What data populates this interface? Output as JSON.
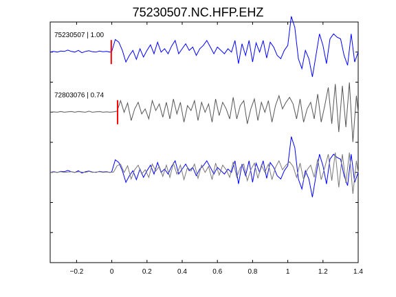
{
  "chart_data": {
    "type": "line",
    "title": "75230507.NC.HFP.EHZ",
    "xlabel": "",
    "ylabel": "",
    "xlim": [
      -0.35,
      1.4
    ],
    "xticks": [
      -0.2,
      0,
      0.2,
      0.4,
      0.6,
      0.8,
      1,
      1.2,
      1.4
    ],
    "xtick_labels": [
      "−0.2",
      "0",
      "0.2",
      "0.4",
      "0.6",
      "0.8",
      "1",
      "1.2",
      "1.4"
    ],
    "ylim": [
      -0.5,
      3.5
    ],
    "grid": false,
    "colors": {
      "master": "#0000ff",
      "correlated": "#555555",
      "correlated_overlay": "#777777",
      "pick": "#ff0000"
    },
    "traces": [
      {
        "label": "75230507 | 1.00",
        "baseline": 3,
        "color_key": "master",
        "pick_x": -0.003
      },
      {
        "label": "72803076 | 0.74",
        "baseline": 2,
        "color_key": "correlated",
        "pick_x": 0.033
      },
      {
        "label": "",
        "baseline": 1,
        "color_key": "overlay",
        "pick_x": null
      }
    ],
    "series": [
      {
        "color_key": "master",
        "x": [
          -0.35,
          -0.33,
          -0.31,
          -0.29,
          -0.27,
          -0.25,
          -0.23,
          -0.21,
          -0.19,
          -0.17,
          -0.15,
          -0.13,
          -0.11,
          -0.09,
          -0.07,
          -0.05,
          -0.03,
          -0.01,
          0.0,
          0.02,
          0.04,
          0.06,
          0.08,
          0.1,
          0.12,
          0.14,
          0.16,
          0.18,
          0.2,
          0.22,
          0.24,
          0.26,
          0.28,
          0.3,
          0.32,
          0.34,
          0.36,
          0.38,
          0.4,
          0.42,
          0.44,
          0.46,
          0.48,
          0.5,
          0.52,
          0.54,
          0.56,
          0.58,
          0.6,
          0.62,
          0.64,
          0.66,
          0.68,
          0.7,
          0.72,
          0.74,
          0.76,
          0.78,
          0.8,
          0.82,
          0.84,
          0.86,
          0.88,
          0.9,
          0.92,
          0.94,
          0.96,
          0.98,
          1.0,
          1.02,
          1.04,
          1.06,
          1.08,
          1.1,
          1.12,
          1.14,
          1.16,
          1.18,
          1.2,
          1.22,
          1.24,
          1.26,
          1.28,
          1.3,
          1.32,
          1.34,
          1.36,
          1.38,
          1.4
        ],
        "y": [
          0,
          0.02,
          0.0,
          0.03,
          0.02,
          0.06,
          0.02,
          0.0,
          0.05,
          -0.02,
          0.02,
          0.04,
          0.01,
          0.0,
          0.03,
          0.01,
          0.02,
          0.0,
          0.02,
          0.38,
          0.3,
          0.05,
          -0.3,
          -0.1,
          0.05,
          -0.22,
          0.1,
          -0.15,
          0.05,
          0.22,
          -0.05,
          0.3,
          0.0,
          0.1,
          -0.05,
          0.18,
          0.35,
          -0.05,
          0.1,
          0.25,
          0.05,
          0.15,
          -0.1,
          0.1,
          0.2,
          0.35,
          0.15,
          -0.05,
          0.15,
          0.05,
          -0.05,
          0.1,
          0.0,
          0.35,
          -0.35,
          0.25,
          -0.1,
          0.35,
          -0.3,
          0.28,
          0.0,
          0.35,
          -0.18,
          0.3,
          0.15,
          -0.1,
          -0.2,
          0.05,
          0.2,
          1.08,
          0.75,
          -0.2,
          -0.5,
          0.05,
          -0.2,
          -0.75,
          -0.1,
          0.55,
          0.2,
          -0.35,
          0.4,
          0.55,
          0.45,
          0.4,
          -0.1,
          -0.4,
          0.55,
          -0.3,
          0.0
        ]
      },
      {
        "color_key": "correlated",
        "x": [
          -0.35,
          -0.33,
          -0.31,
          -0.29,
          -0.27,
          -0.25,
          -0.23,
          -0.21,
          -0.19,
          -0.17,
          -0.15,
          -0.13,
          -0.11,
          -0.09,
          -0.07,
          -0.05,
          -0.03,
          -0.01,
          0.01,
          0.03,
          0.05,
          0.07,
          0.09,
          0.11,
          0.13,
          0.15,
          0.17,
          0.19,
          0.21,
          0.23,
          0.25,
          0.27,
          0.29,
          0.31,
          0.33,
          0.35,
          0.37,
          0.39,
          0.41,
          0.43,
          0.45,
          0.47,
          0.49,
          0.51,
          0.53,
          0.55,
          0.57,
          0.59,
          0.61,
          0.63,
          0.65,
          0.67,
          0.69,
          0.71,
          0.73,
          0.75,
          0.77,
          0.79,
          0.81,
          0.83,
          0.85,
          0.87,
          0.89,
          0.91,
          0.93,
          0.95,
          0.97,
          0.99,
          1.01,
          1.03,
          1.05,
          1.07,
          1.09,
          1.11,
          1.13,
          1.15,
          1.17,
          1.19,
          1.21,
          1.23,
          1.25,
          1.27,
          1.29,
          1.31,
          1.33,
          1.35,
          1.37,
          1.39,
          1.4
        ],
        "y": [
          0,
          0.01,
          0.0,
          0.02,
          0.0,
          0.01,
          0.02,
          0.0,
          0.02,
          0.01,
          0.0,
          0.03,
          0.0,
          0.01,
          0.02,
          0.0,
          0.01,
          0.0,
          0.01,
          0.03,
          0.35,
          0.0,
          0.28,
          -0.25,
          0.1,
          0.3,
          -0.05,
          0.1,
          -0.2,
          0.35,
          0.05,
          0.25,
          -0.15,
          0.3,
          -0.2,
          0.4,
          -0.05,
          0.3,
          -0.3,
          0.2,
          0.05,
          0.35,
          -0.25,
          0.3,
          0.0,
          0.25,
          -0.3,
          0.4,
          -0.1,
          0.3,
          0.1,
          -0.2,
          0.45,
          -0.2,
          0.2,
          0.35,
          -0.35,
          0.1,
          0.4,
          -0.25,
          0.3,
          0.0,
          0.35,
          -0.3,
          0.2,
          0.5,
          0.1,
          0.3,
          0.45,
          0.25,
          -0.2,
          0.4,
          -0.3,
          0.1,
          0.3,
          -0.2,
          0.55,
          -0.3,
          0.2,
          0.75,
          -0.35,
          0.85,
          -0.6,
          0.8,
          -0.45,
          0.9,
          -0.9,
          0.5,
          0.0
        ]
      },
      {
        "color_key": "master",
        "x": [
          -0.35,
          -0.33,
          -0.31,
          -0.29,
          -0.27,
          -0.25,
          -0.23,
          -0.21,
          -0.19,
          -0.17,
          -0.15,
          -0.13,
          -0.11,
          -0.09,
          -0.07,
          -0.05,
          -0.03,
          -0.01,
          0.0,
          0.02,
          0.04,
          0.06,
          0.08,
          0.1,
          0.12,
          0.14,
          0.16,
          0.18,
          0.2,
          0.22,
          0.24,
          0.26,
          0.28,
          0.3,
          0.32,
          0.34,
          0.36,
          0.38,
          0.4,
          0.42,
          0.44,
          0.46,
          0.48,
          0.5,
          0.52,
          0.54,
          0.56,
          0.58,
          0.6,
          0.62,
          0.64,
          0.66,
          0.68,
          0.7,
          0.72,
          0.74,
          0.76,
          0.78,
          0.8,
          0.82,
          0.84,
          0.86,
          0.88,
          0.9,
          0.92,
          0.94,
          0.96,
          0.98,
          1.0,
          1.02,
          1.04,
          1.06,
          1.08,
          1.1,
          1.12,
          1.14,
          1.16,
          1.18,
          1.2,
          1.22,
          1.24,
          1.26,
          1.28,
          1.3,
          1.32,
          1.34,
          1.36,
          1.38,
          1.4
        ],
        "y": [
          0,
          0.02,
          0.0,
          0.03,
          0.02,
          0.06,
          0.02,
          0.0,
          0.05,
          -0.02,
          0.02,
          0.04,
          0.01,
          0.0,
          0.03,
          0.01,
          0.02,
          0.0,
          0.02,
          0.38,
          0.3,
          0.05,
          -0.3,
          -0.1,
          0.05,
          -0.22,
          0.1,
          -0.15,
          0.05,
          0.22,
          -0.05,
          0.3,
          0.0,
          0.1,
          -0.05,
          0.18,
          0.35,
          -0.05,
          0.1,
          0.25,
          0.05,
          0.15,
          -0.1,
          0.1,
          0.2,
          0.35,
          0.15,
          -0.05,
          0.15,
          0.05,
          -0.05,
          0.1,
          0.0,
          0.35,
          -0.35,
          0.25,
          -0.1,
          0.35,
          -0.3,
          0.28,
          0.0,
          0.35,
          -0.18,
          0.3,
          0.15,
          -0.1,
          -0.2,
          0.05,
          0.2,
          1.08,
          0.75,
          -0.2,
          -0.5,
          0.05,
          -0.2,
          -0.75,
          -0.1,
          0.55,
          0.2,
          -0.35,
          0.4,
          0.55,
          0.45,
          0.4,
          -0.1,
          -0.4,
          0.55,
          -0.3,
          0.0
        ]
      },
      {
        "color_key": "correlated_overlay",
        "x": [
          -0.35,
          -0.33,
          -0.31,
          -0.29,
          -0.27,
          -0.25,
          -0.23,
          -0.21,
          -0.19,
          -0.17,
          -0.15,
          -0.13,
          -0.11,
          -0.09,
          -0.07,
          -0.05,
          -0.03,
          -0.01,
          0.01,
          0.03,
          0.05,
          0.07,
          0.09,
          0.11,
          0.13,
          0.15,
          0.17,
          0.19,
          0.21,
          0.23,
          0.25,
          0.27,
          0.29,
          0.31,
          0.33,
          0.35,
          0.37,
          0.39,
          0.41,
          0.43,
          0.45,
          0.47,
          0.49,
          0.51,
          0.53,
          0.55,
          0.57,
          0.59,
          0.61,
          0.63,
          0.65,
          0.67,
          0.69,
          0.71,
          0.73,
          0.75,
          0.77,
          0.79,
          0.81,
          0.83,
          0.85,
          0.87,
          0.89,
          0.91,
          0.93,
          0.95,
          0.97,
          0.99,
          1.01,
          1.03,
          1.05,
          1.07,
          1.09,
          1.11,
          1.13,
          1.15,
          1.17,
          1.19,
          1.21,
          1.23,
          1.25,
          1.27,
          1.29,
          1.31,
          1.33,
          1.35,
          1.37,
          1.39,
          1.4
        ],
        "y": [
          0,
          0.01,
          0.0,
          0.02,
          0.0,
          0.01,
          0.02,
          0.0,
          0.02,
          0.01,
          0.0,
          0.03,
          0.0,
          0.01,
          0.02,
          0.0,
          0.01,
          0.0,
          0.01,
          0.2,
          0.25,
          0.0,
          0.2,
          -0.2,
          0.08,
          0.22,
          -0.05,
          0.08,
          -0.15,
          0.25,
          0.04,
          0.18,
          -0.12,
          0.22,
          -0.15,
          0.28,
          -0.05,
          0.22,
          -0.22,
          0.15,
          0.04,
          0.25,
          -0.18,
          0.22,
          0.0,
          0.18,
          -0.22,
          0.28,
          -0.08,
          0.22,
          0.08,
          -0.15,
          0.32,
          -0.15,
          0.15,
          0.25,
          -0.25,
          0.08,
          0.28,
          -0.18,
          0.22,
          0.0,
          0.25,
          -0.22,
          0.15,
          0.35,
          0.08,
          0.22,
          0.32,
          0.18,
          -0.15,
          0.28,
          -0.22,
          0.08,
          0.22,
          -0.15,
          0.4,
          -0.22,
          0.15,
          0.55,
          -0.25,
          0.6,
          -0.45,
          0.55,
          -0.32,
          0.6,
          -0.65,
          0.35,
          0.0
        ]
      }
    ],
    "series_baselines": [
      3,
      2,
      1,
      1
    ],
    "series_amplitude": 0.55
  }
}
